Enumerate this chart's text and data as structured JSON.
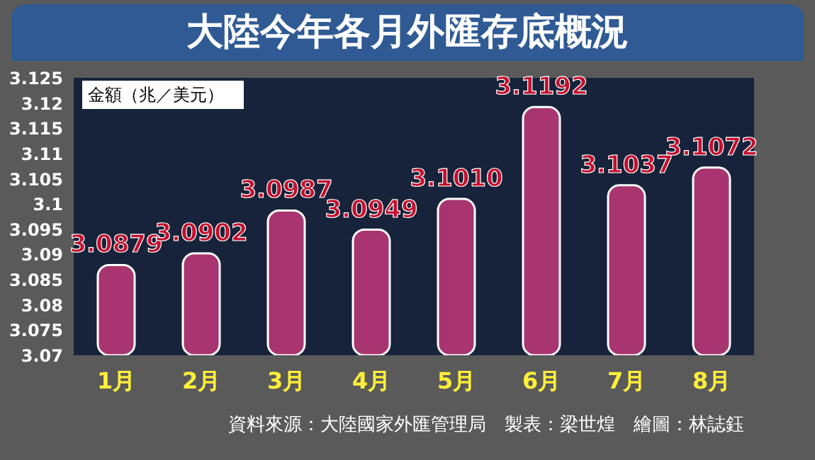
{
  "chart_data": {
    "type": "bar",
    "title": "大陸今年各月外匯存底概況",
    "ylabel": "金額（兆／美元）",
    "categories": [
      "1月",
      "2月",
      "3月",
      "4月",
      "5月",
      "6月",
      "7月",
      "8月"
    ],
    "values": [
      3.0879,
      3.0902,
      3.0987,
      3.0949,
      3.101,
      3.1192,
      3.1037,
      3.1072
    ],
    "value_labels": [
      "3.0879",
      "3.0902",
      "3.0987",
      "3.0949",
      "3.1010",
      "3.1192",
      "3.1037",
      "3.1072"
    ],
    "color": "#a8356f",
    "ylim": [
      3.07,
      3.125
    ],
    "yticks": [
      3.07,
      3.075,
      3.08,
      3.085,
      3.09,
      3.095,
      3.1,
      3.105,
      3.11,
      3.115,
      3.12,
      3.125
    ],
    "annotations": [
      "資料來源：大陸國家外匯管理局　製表：梁世煌　繪圖：林誌鈺"
    ]
  }
}
